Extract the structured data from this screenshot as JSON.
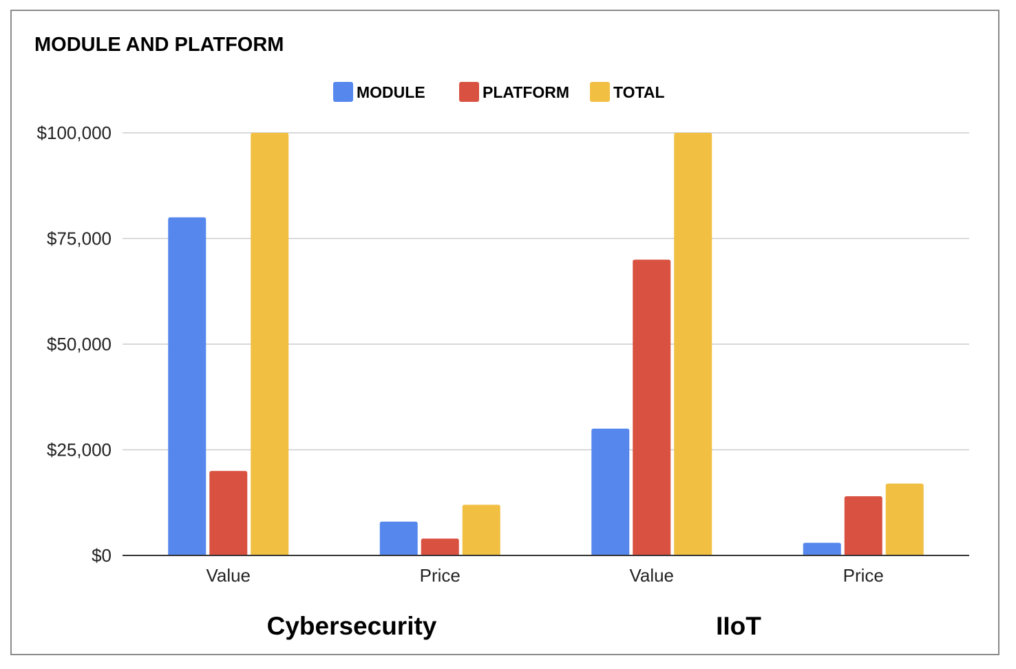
{
  "chart_data": {
    "type": "bar",
    "title": "MODULE AND PLATFORM",
    "categories": [
      "Value",
      "Price",
      "Value",
      "Price"
    ],
    "groups": [
      {
        "label": "Cybersecurity",
        "categories": [
          "Value",
          "Price"
        ]
      },
      {
        "label": "IIoT",
        "categories": [
          "Value",
          "Price"
        ]
      }
    ],
    "series": [
      {
        "name": "MODULE",
        "color": "#5587ed",
        "values": [
          80000,
          8000,
          30000,
          3000
        ]
      },
      {
        "name": "PLATFORM",
        "color": "#d95141",
        "values": [
          20000,
          4000,
          70000,
          14000
        ]
      },
      {
        "name": "TOTAL",
        "color": "#f1bf42",
        "values": [
          100000,
          12000,
          100000,
          17000
        ]
      }
    ],
    "ylim": [
      0,
      100000
    ],
    "yticks": [
      0,
      25000,
      50000,
      75000,
      100000
    ],
    "ytick_labels": [
      "$0",
      "$25,000",
      "$50,000",
      "$75,000",
      "$100,000"
    ],
    "xlabel": "",
    "ylabel": "",
    "grid": true,
    "legend_position": "top-center"
  }
}
